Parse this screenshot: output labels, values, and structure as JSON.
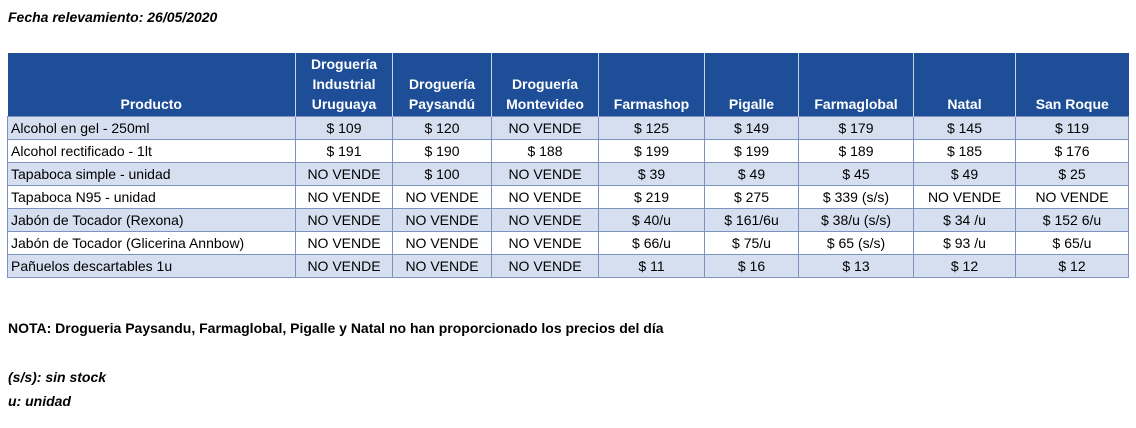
{
  "date_line": "Fecha relevamiento: 26/05/2020",
  "table": {
    "headers": [
      [
        "Producto"
      ],
      [
        "Droguería",
        "Industrial",
        "Uruguaya"
      ],
      [
        "Droguería",
        "Paysandú"
      ],
      [
        "Droguería",
        "Montevideo"
      ],
      [
        "Farmashop"
      ],
      [
        "Pigalle"
      ],
      [
        "Farmaglobal"
      ],
      [
        "Natal"
      ],
      [
        "San Roque"
      ]
    ],
    "rows": [
      [
        "Alcohol en gel  - 250ml",
        "$ 109",
        "$ 120",
        "NO VENDE",
        "$ 125",
        "$ 149",
        "$ 179",
        "$ 145",
        "$ 119"
      ],
      [
        "Alcohol rectificado - 1lt",
        "$ 191",
        "$ 190",
        "$ 188",
        "$ 199",
        "$ 199",
        "$ 189",
        "$ 185",
        "$ 176"
      ],
      [
        "Tapaboca simple - unidad",
        "NO VENDE",
        "$ 100",
        "NO VENDE",
        "$ 39",
        "$ 49",
        "$ 45",
        "$ 49",
        "$ 25"
      ],
      [
        "Tapaboca N95 - unidad",
        "NO VENDE",
        "NO VENDE",
        "NO VENDE",
        "$ 219",
        "$ 275",
        "$ 339 (s/s)",
        "NO VENDE",
        "NO VENDE"
      ],
      [
        "Jabón de Tocador (Rexona)",
        "NO VENDE",
        "NO VENDE",
        "NO VENDE",
        "$ 40/u",
        "$ 161/6u",
        "$ 38/u (s/s)",
        "$ 34 /u",
        "$ 152 6/u"
      ],
      [
        "Jabón de Tocador (Glicerina Annbow)",
        "NO VENDE",
        "NO VENDE",
        "NO VENDE",
        "$ 66/u",
        "$ 75/u",
        "$ 65 (s/s)",
        "$ 93 /u",
        "$ 65/u"
      ],
      [
        "Pañuelos descartables 1u",
        "NO VENDE",
        "NO VENDE",
        "NO VENDE",
        "$ 11",
        "$ 16",
        "$ 13",
        "$ 12",
        "$ 12"
      ]
    ]
  },
  "note": "NOTA: Drogueria Paysandu, Farmaglobal, Pigalle y Natal no han proporcionado los precios del día",
  "legend": [
    "(s/s): sin stock",
    "u: unidad"
  ],
  "colors": {
    "header_bg": "#1f4e99",
    "header_text": "#ffffff",
    "band_row": "#d6dff0",
    "grid": "#7d93bd"
  }
}
